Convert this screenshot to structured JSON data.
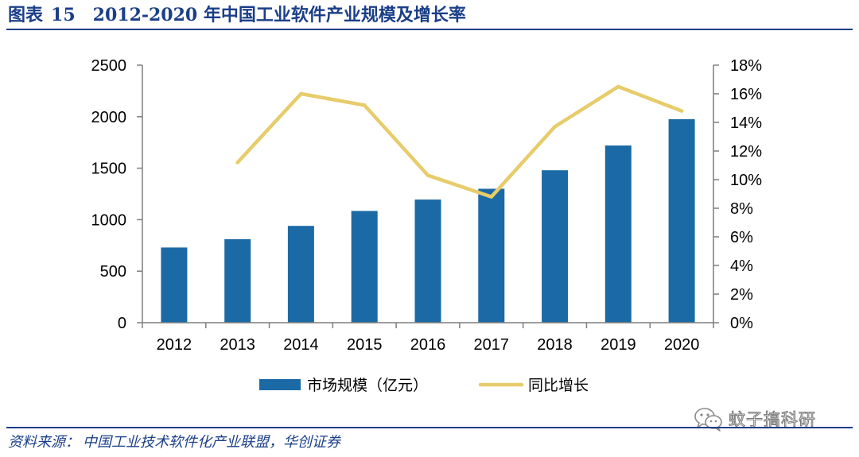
{
  "figure": {
    "label": "图表",
    "number": "15",
    "title": "2012-2020 年中国工业软件产业规模及增长率"
  },
  "source": {
    "label": "资料来源：",
    "text": "中国工业技术软件化产业联盟，华创证券"
  },
  "watermark": {
    "icon": "wechat-icon",
    "text": "蚊子搞科研"
  },
  "colors": {
    "title": "#1b3f88",
    "bar": "#1b6aa5",
    "line": "#e7cc6b",
    "axis": "#7f7f7f"
  },
  "chart_data": {
    "type": "bar",
    "categories": [
      "2012",
      "2013",
      "2014",
      "2015",
      "2016",
      "2017",
      "2018",
      "2019",
      "2020"
    ],
    "series": [
      {
        "name": "市场规模（亿元）",
        "type": "bar",
        "axis": "left",
        "values": [
          730,
          810,
          940,
          1085,
          1195,
          1300,
          1480,
          1720,
          1975
        ]
      },
      {
        "name": "同比增长",
        "type": "line",
        "axis": "right",
        "values": [
          null,
          11.2,
          16.0,
          15.2,
          10.3,
          8.8,
          13.7,
          16.5,
          14.8
        ]
      }
    ],
    "y_left": {
      "lim": [
        0,
        2500
      ],
      "ticks": [
        0,
        500,
        1000,
        1500,
        2000,
        2500
      ],
      "tick_labels": [
        "0",
        "500",
        "1000",
        "1500",
        "2000",
        "2500"
      ]
    },
    "y_right": {
      "lim": [
        0,
        18
      ],
      "ticks": [
        0,
        2,
        4,
        6,
        8,
        10,
        12,
        14,
        16,
        18
      ],
      "tick_labels": [
        "0%",
        "2%",
        "4%",
        "6%",
        "8%",
        "10%",
        "12%",
        "14%",
        "16%",
        "18%"
      ]
    },
    "grid": false,
    "legend_position": "bottom"
  }
}
